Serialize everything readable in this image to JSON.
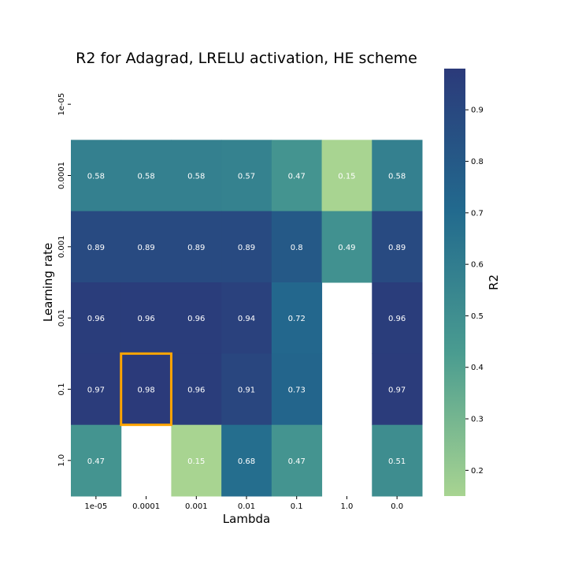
{
  "chart_data": {
    "type": "heatmap",
    "title": "R2 for Adagrad, LRELU activation, HE scheme",
    "xlabel": "Lambda",
    "ylabel": "Learning rate",
    "x_categories": [
      "1e-05",
      "0.0001",
      "0.001",
      "0.01",
      "0.1",
      "1.0",
      "0.0"
    ],
    "y_categories": [
      "1e-05",
      "0.0001",
      "0.001",
      "0.01",
      "0.1",
      "1.0"
    ],
    "values": [
      [
        null,
        null,
        null,
        null,
        null,
        null,
        null
      ],
      [
        0.58,
        0.58,
        0.58,
        0.57,
        0.47,
        0.15,
        0.58
      ],
      [
        0.89,
        0.89,
        0.89,
        0.89,
        0.8,
        0.49,
        0.89
      ],
      [
        0.96,
        0.96,
        0.96,
        0.94,
        0.72,
        null,
        0.96
      ],
      [
        0.97,
        0.98,
        0.96,
        0.91,
        0.73,
        null,
        0.97
      ],
      [
        0.47,
        null,
        0.15,
        0.68,
        0.47,
        null,
        0.51
      ]
    ],
    "annotations": [
      [
        "",
        "",
        "",
        "",
        "",
        "",
        ""
      ],
      [
        "0.58",
        "0.58",
        "0.58",
        "0.57",
        "0.47",
        "0.15",
        "0.58"
      ],
      [
        "0.89",
        "0.89",
        "0.89",
        "0.89",
        "0.8",
        "0.49",
        "0.89"
      ],
      [
        "0.96",
        "0.96",
        "0.96",
        "0.94",
        "0.72",
        "",
        "0.96"
      ],
      [
        "0.97",
        "0.98",
        "0.96",
        "0.91",
        "0.73",
        "",
        "0.97"
      ],
      [
        "0.47",
        "",
        "0.15",
        "0.68",
        "0.47",
        "",
        "0.51"
      ]
    ],
    "colorbar": {
      "label": "R2",
      "vmin": 0.15,
      "vmax": 0.98,
      "ticks": [
        0.2,
        0.3,
        0.4,
        0.5,
        0.6,
        0.7,
        0.8,
        0.9
      ],
      "tick_labels": [
        "0.2",
        "0.3",
        "0.4",
        "0.5",
        "0.6",
        "0.7",
        "0.8",
        "0.9"
      ],
      "colormap_stops": [
        "#a8d491",
        "#4a9c90",
        "#226a8e",
        "#2b3a7a"
      ]
    },
    "highlight": {
      "row": 4,
      "col": 1,
      "color": "#ffa500"
    },
    "y_tick_rotation": "vertical",
    "grid": false
  }
}
